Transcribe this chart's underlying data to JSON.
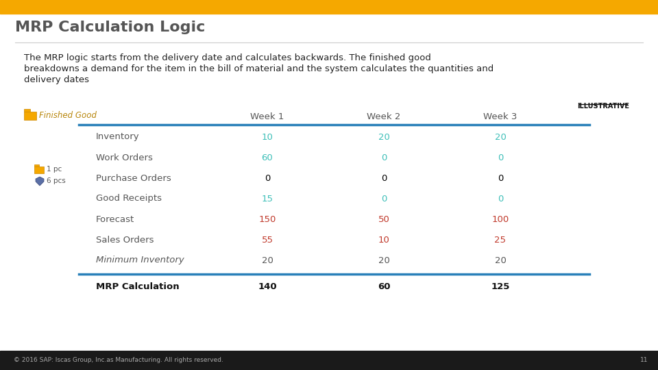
{
  "title": "MRP Calculation Logic",
  "header_bar_color": "#F5A800",
  "bg_color": "#FFFFFF",
  "footer_bg": "#1A1A1A",
  "footer_text": "© 2016 SAP: Iscas Group, Inc.as Manufacturing. All rights reserved.",
  "footer_page": "11",
  "body_text": "The MRP logic starts from the delivery date and calculates backwards. The finished good\nbreakdowns a demand for the item in the bill of material and the system calculates the quantities and\ndelivery dates",
  "illustrative_label": "ILLUSTRATIVE",
  "finished_good_label": "Finished Good",
  "col_headers": [
    "",
    "Week 1",
    "Week 2",
    "Week 3"
  ],
  "rows": [
    {
      "label": "Inventory",
      "values": [
        "10",
        "20",
        "20"
      ],
      "italic": false,
      "bold": false,
      "val_color": "#3DBFB8"
    },
    {
      "label": "Work Orders",
      "values": [
        "60",
        "0",
        "0"
      ],
      "italic": false,
      "bold": false,
      "val_color": "#3DBFB8"
    },
    {
      "label": "Purchase Orders",
      "values": [
        "0",
        "0",
        "0"
      ],
      "italic": false,
      "bold": false,
      "val_color": "#000000"
    },
    {
      "label": "Good Receipts",
      "values": [
        "15",
        "0",
        "0"
      ],
      "italic": false,
      "bold": false,
      "val_color": "#3DBFB8"
    },
    {
      "label": "Forecast",
      "values": [
        "150",
        "50",
        "100"
      ],
      "italic": false,
      "bold": false,
      "val_color": "#C0392B"
    },
    {
      "label": "Sales Orders",
      "values": [
        "55",
        "10",
        "25"
      ],
      "italic": false,
      "bold": false,
      "val_color": "#C0392B"
    },
    {
      "label": "Minimum Inventory",
      "values": [
        "20",
        "20",
        "20"
      ],
      "italic": true,
      "bold": false,
      "val_color": "#555555"
    }
  ],
  "mrp_row": {
    "label": "MRP Calculation",
    "values": [
      "140",
      "60",
      "125"
    ]
  },
  "label_color": "#555555",
  "header_row_color": "#555555",
  "title_color": "#555555",
  "divider_color": "#2980B9",
  "icon_folder_color": "#F5A800",
  "icon_gem_color": "#5B6FA6"
}
